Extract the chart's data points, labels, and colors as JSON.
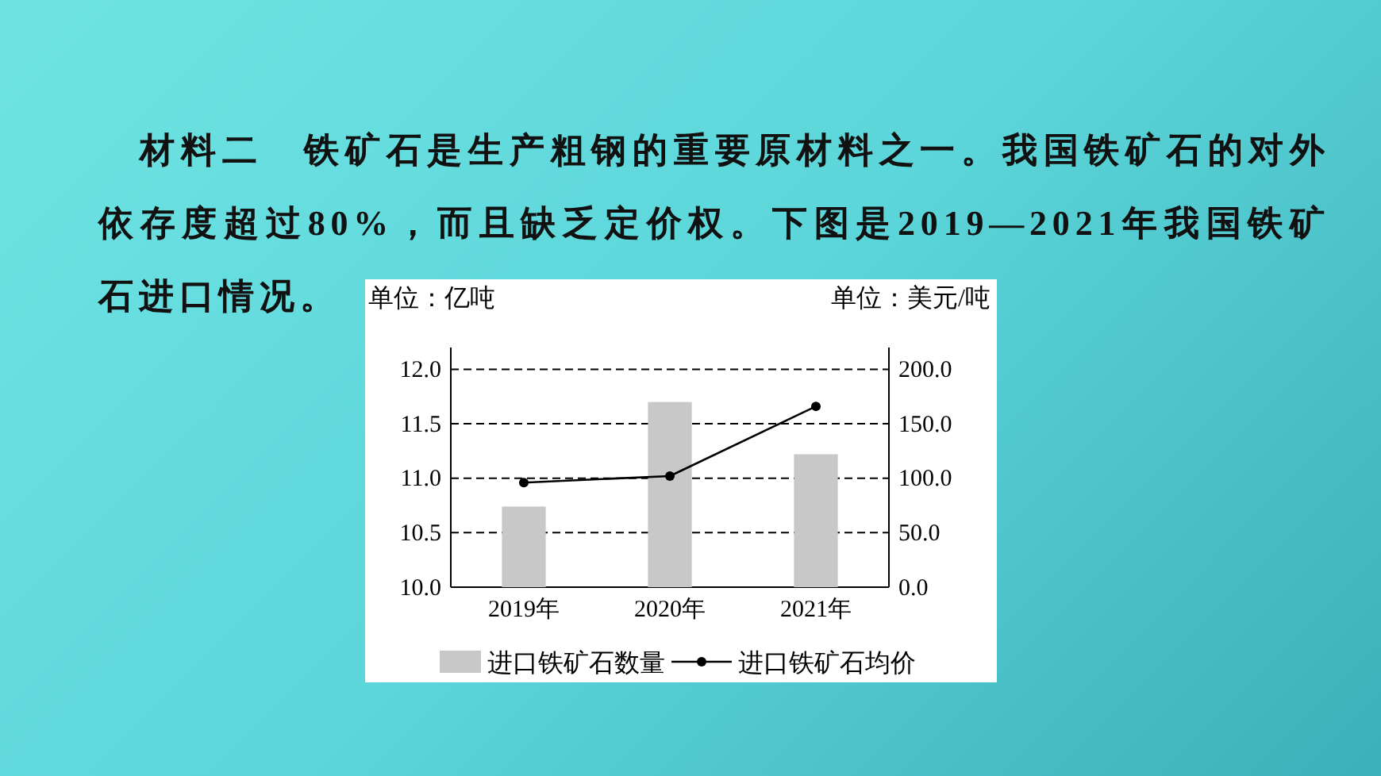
{
  "chart_data": {
    "type": "bar",
    "title": "材料二　铁矿石是生产粗钢的重要原材料之一。我国铁矿石的对外依存度超过80%，而且缺乏定价权。下图是2019—2021年我国铁矿石进口情况。",
    "ylabel": "单位：亿吨",
    "y2label": "单位：美元/吨",
    "categories": [
      "2019年",
      "2020年",
      "2021年"
    ],
    "series": [
      {
        "name": "进口铁矿石数量",
        "color": "#c8c8c8",
        "values": [
          10.74,
          11.7,
          11.22
        ]
      },
      {
        "name": "进口铁矿石均价",
        "type": "line",
        "axis": "y2",
        "color": "#000000",
        "values": [
          96,
          102,
          166
        ]
      }
    ],
    "ylim": [
      10.0,
      12.2
    ],
    "yticks": [
      {
        "value": 10,
        "label": "10.0"
      },
      {
        "value": 10.5,
        "label": "10.5"
      },
      {
        "value": 11,
        "label": "11.0"
      },
      {
        "value": 11.5,
        "label": "11.5"
      },
      {
        "value": 12,
        "label": "12.0"
      }
    ],
    "y2lim": [
      0,
      220
    ],
    "y2ticks": [
      {
        "value": 0,
        "label": "0.0"
      },
      {
        "value": 50,
        "label": "50.0"
      },
      {
        "value": 100,
        "label": "100.0"
      },
      {
        "value": 150,
        "label": "150.0"
      },
      {
        "value": 200,
        "label": "200.0"
      }
    ],
    "grid": "y",
    "legend": "bottom",
    "marker": "circle",
    "line_style": "solid"
  }
}
